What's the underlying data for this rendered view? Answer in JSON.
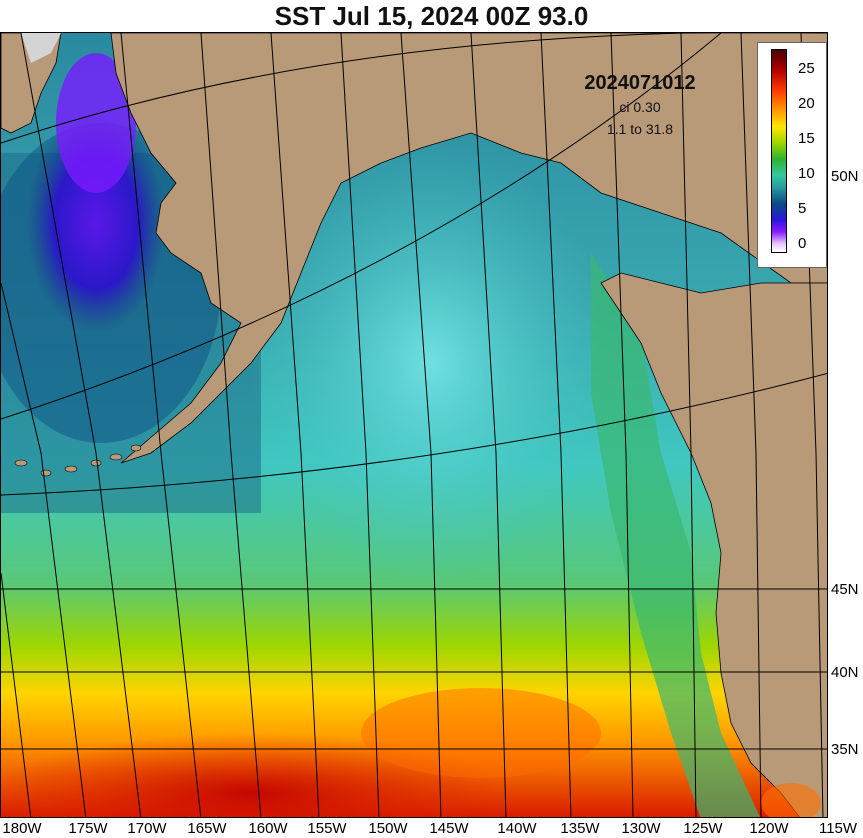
{
  "title": "SST Jul 15, 2024 00Z 93.0",
  "info": {
    "date_code": "2024071012",
    "contour_interval": "ci 0.30",
    "range": "1.1 to 31.8"
  },
  "colorbar": {
    "ticks": [
      "25",
      "20",
      "15",
      "10",
      "5",
      "0"
    ],
    "colors": [
      "#4a0000",
      "#b00000",
      "#ff3a00",
      "#ff9a00",
      "#ffe600",
      "#9ed600",
      "#2fb22f",
      "#35c8a0",
      "#2a9aa0",
      "#0b4c82",
      "#2a18d8",
      "#8a1aff",
      "#e8c8ff"
    ]
  },
  "lat_labels": [
    "50N",
    "45N",
    "40N",
    "35N"
  ],
  "lon_labels": [
    "180W",
    "175W",
    "170W",
    "165W",
    "160W",
    "155W",
    "150W",
    "145W",
    "140W",
    "135W",
    "130W",
    "125W",
    "120W",
    "115W"
  ],
  "colors": {
    "land": "#b99a78",
    "ice": "#d4d4d4",
    "grid": "#000000"
  }
}
